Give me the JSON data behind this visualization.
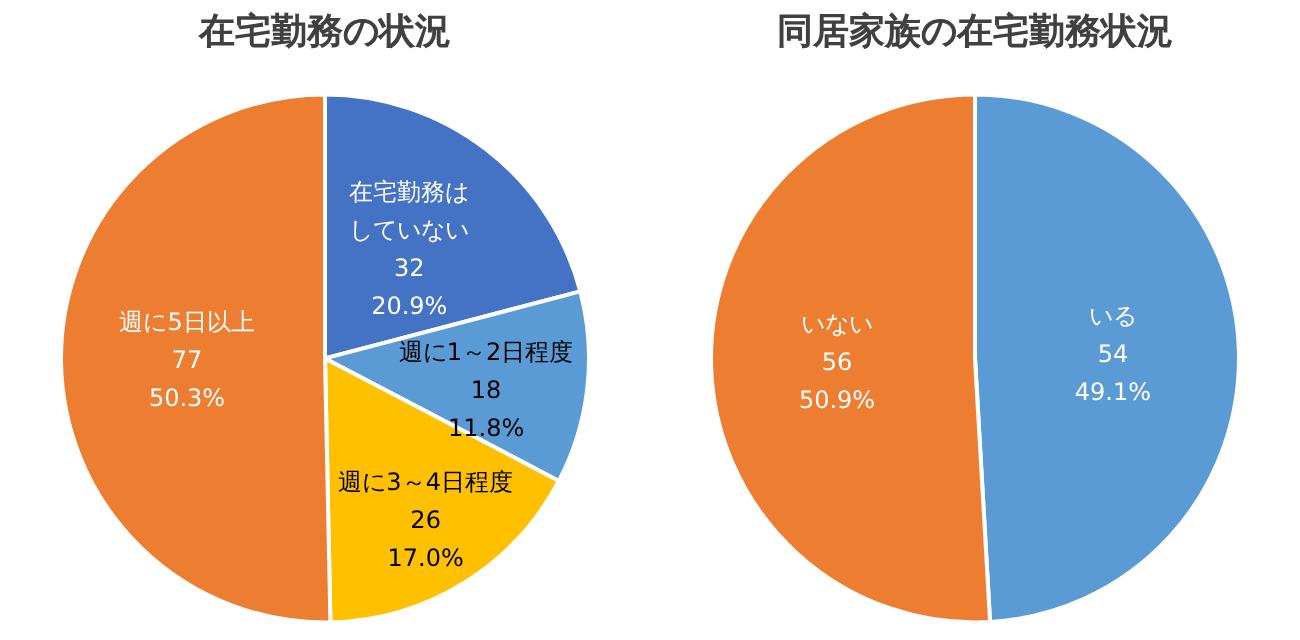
{
  "chart_data": [
    {
      "type": "pie",
      "title": "在宅勤務の状況",
      "categories": [
        "在宅勤務はしていない",
        "週に1～2日程度",
        "週に3～4日程度",
        "週に5日以上"
      ],
      "values": [
        32,
        18,
        26,
        77
      ],
      "colors": [
        "#4472c4",
        "#5b9bd5",
        "#ffc000",
        "#ed7d31"
      ],
      "value_labels": [
        "32\n20.9%",
        "18\n11.8%",
        "26\n17.0%",
        "77\n50.3%"
      ],
      "legend": false
    },
    {
      "type": "pie",
      "title": "同居家族の在宅勤務状況",
      "categories": [
        "いる",
        "いない"
      ],
      "values": [
        54,
        56
      ],
      "colors": [
        "#5b9bd5",
        "#ed7d31"
      ],
      "value_labels": [
        "54\n49.1%",
        "56\n50.9%"
      ],
      "legend": false
    }
  ]
}
